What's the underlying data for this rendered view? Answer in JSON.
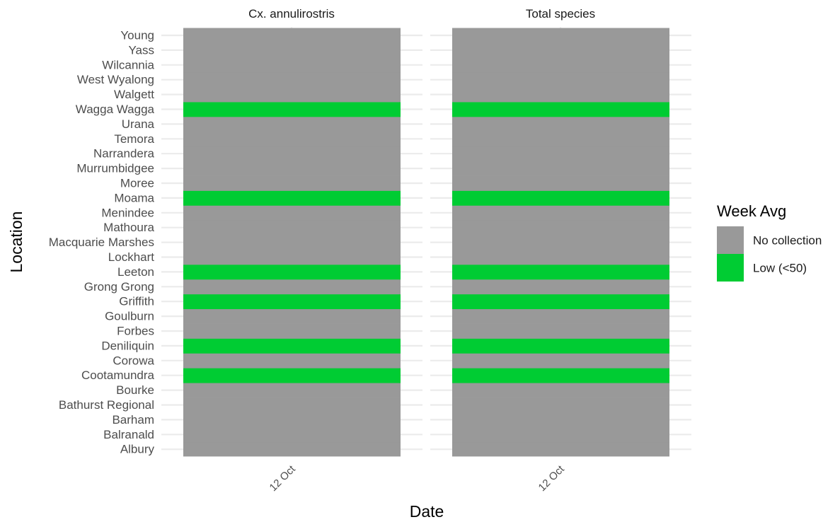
{
  "chart_data": {
    "type": "heatmap",
    "xlabel": "Date",
    "ylabel": "Location",
    "x_categories": [
      "12 Oct"
    ],
    "locations": [
      "Albury",
      "Balranald",
      "Barham",
      "Bathurst Regional",
      "Bourke",
      "Cootamundra",
      "Corowa",
      "Deniliquin",
      "Forbes",
      "Goulburn",
      "Griffith",
      "Grong Grong",
      "Leeton",
      "Lockhart",
      "Macquarie Marshes",
      "Mathoura",
      "Menindee",
      "Moama",
      "Moree",
      "Murrumbidgee",
      "Narrandera",
      "Temora",
      "Urana",
      "Wagga Wagga",
      "Walgett",
      "West Wyalong",
      "Wilcannia",
      "Yass",
      "Young"
    ],
    "facets": [
      {
        "title": "Cx. annulirostris",
        "values": {
          "Albury": "No collection",
          "Balranald": "No collection",
          "Barham": "No collection",
          "Bathurst Regional": "No collection",
          "Bourke": "No collection",
          "Cootamundra": "Low (<50)",
          "Corowa": "No collection",
          "Deniliquin": "Low (<50)",
          "Forbes": "No collection",
          "Goulburn": "No collection",
          "Griffith": "Low (<50)",
          "Grong Grong": "No collection",
          "Leeton": "Low (<50)",
          "Lockhart": "No collection",
          "Macquarie Marshes": "No collection",
          "Mathoura": "No collection",
          "Menindee": "No collection",
          "Moama": "Low (<50)",
          "Moree": "No collection",
          "Murrumbidgee": "No collection",
          "Narrandera": "No collection",
          "Temora": "No collection",
          "Urana": "No collection",
          "Wagga Wagga": "Low (<50)",
          "Walgett": "No collection",
          "West Wyalong": "No collection",
          "Wilcannia": "No collection",
          "Yass": "No collection",
          "Young": "No collection"
        }
      },
      {
        "title": "Total species",
        "values": {
          "Albury": "No collection",
          "Balranald": "No collection",
          "Barham": "No collection",
          "Bathurst Regional": "No collection",
          "Bourke": "No collection",
          "Cootamundra": "Low (<50)",
          "Corowa": "No collection",
          "Deniliquin": "Low (<50)",
          "Forbes": "No collection",
          "Goulburn": "No collection",
          "Griffith": "Low (<50)",
          "Grong Grong": "No collection",
          "Leeton": "Low (<50)",
          "Lockhart": "No collection",
          "Macquarie Marshes": "No collection",
          "Mathoura": "No collection",
          "Menindee": "No collection",
          "Moama": "Low (<50)",
          "Moree": "No collection",
          "Murrumbidgee": "No collection",
          "Narrandera": "No collection",
          "Temora": "No collection",
          "Urana": "No collection",
          "Wagga Wagga": "Low (<50)",
          "Walgett": "No collection",
          "West Wyalong": "No collection",
          "Wilcannia": "No collection",
          "Yass": "No collection",
          "Young": "No collection"
        }
      }
    ],
    "legend": {
      "title": "Week Avg",
      "position": "right",
      "entries": [
        {
          "label": "No collection",
          "color": "#999999"
        },
        {
          "label": "Low (<50)",
          "color": "#00CC33"
        }
      ]
    },
    "grid": true
  }
}
